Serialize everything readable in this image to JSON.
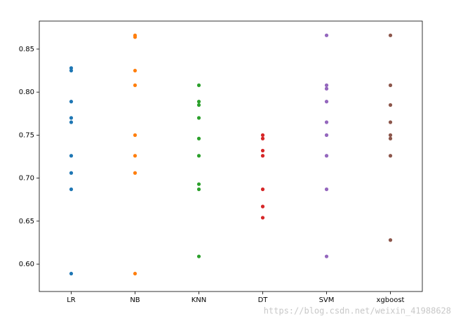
{
  "chart_data": {
    "type": "strip",
    "categories": [
      "LR",
      "NB",
      "KNN",
      "DT",
      "SVM",
      "xgboost"
    ],
    "colors": [
      "#1f77b4",
      "#ff7f0e",
      "#2ca02c",
      "#d62728",
      "#9467bd",
      "#8c564b"
    ],
    "values": [
      [
        0.828,
        0.825,
        0.789,
        0.77,
        0.765,
        0.726,
        0.706,
        0.687,
        0.589
      ],
      [
        0.866,
        0.864,
        0.825,
        0.808,
        0.75,
        0.726,
        0.706,
        0.589
      ],
      [
        0.808,
        0.789,
        0.785,
        0.77,
        0.746,
        0.726,
        0.693,
        0.687,
        0.609
      ],
      [
        0.75,
        0.746,
        0.732,
        0.726,
        0.687,
        0.667,
        0.654
      ],
      [
        0.866,
        0.808,
        0.804,
        0.789,
        0.765,
        0.75,
        0.726,
        0.687,
        0.609
      ],
      [
        0.866,
        0.808,
        0.785,
        0.765,
        0.75,
        0.746,
        0.726,
        0.628
      ]
    ],
    "ylim": [
      0.5682,
      0.8826
    ],
    "yticks": [
      {
        "value": 0.6,
        "label": "0.60"
      },
      0.65,
      {
        "value": 0.7,
        "label": "0.70"
      },
      0.75,
      {
        "value": 0.8,
        "label": "0.80"
      },
      0.85
    ],
    "grid": false
  },
  "watermark": "https://blog.csdn.net/weixin_41988628"
}
